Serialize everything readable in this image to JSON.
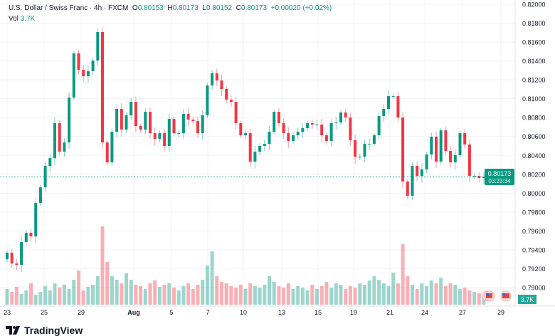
{
  "header": {
    "symbol": "U.S. Dollar / Swiss Franc · 4h · FXCM",
    "o_label": "O",
    "o": "0.80153",
    "h_label": "H",
    "h": "0.80173",
    "l_label": "L",
    "l": "0.80152",
    "c_label": "C",
    "c": "0.80173",
    "change": "+0.00020 (+0.02%)",
    "vol_label": "Vol",
    "vol": "3.7K"
  },
  "price_badge": {
    "price": "0.80173",
    "countdown": "03:23:34"
  },
  "volume_badge": "3.7K",
  "logo": "TradingView",
  "colors": {
    "up": "#089981",
    "down": "#f23645",
    "grid": "#f0f3fa"
  },
  "chart_data": {
    "type": "candlestick",
    "title": "U.S. Dollar / Swiss Franc · 4h · FXCM",
    "ylim": [
      0.79,
      0.82
    ],
    "yticks": [
      "0.82000",
      "0.81800",
      "0.81600",
      "0.81400",
      "0.81200",
      "0.81000",
      "0.80800",
      "0.80600",
      "0.80400",
      "0.80200",
      "0.80000",
      "0.79800",
      "0.79600",
      "0.79400",
      "0.79200",
      "0.79000"
    ],
    "xticks": [
      "23",
      "25",
      "29",
      "Aug",
      "5",
      "7",
      "10",
      "13",
      "15",
      "19",
      "21",
      "24",
      "27",
      "29"
    ],
    "first_open": 0.793,
    "close": [
      0.79369,
      0.79255,
      0.7924,
      0.79482,
      0.7958,
      0.79542,
      0.79896,
      0.80062,
      0.80288,
      0.80371,
      0.80741,
      0.80439,
      0.80537,
      0.81012,
      0.8148,
      0.81306,
      0.81238,
      0.81291,
      0.81404,
      0.81706,
      0.80537,
      0.80326,
      0.8065,
      0.80892,
      0.80673,
      0.80824,
      0.80967,
      0.80711,
      0.80673,
      0.80861,
      0.80635,
      0.80575,
      0.80635,
      0.805,
      0.80786,
      0.80635,
      0.80635,
      0.80839,
      0.80779,
      0.80763,
      0.80635,
      0.80824,
      0.8114,
      0.81269,
      0.81193,
      0.81103,
      0.8099,
      0.80967,
      0.80741,
      0.80613,
      0.80635,
      0.80334,
      0.80439,
      0.805,
      0.80522,
      0.8065,
      0.80861,
      0.80741,
      0.80635,
      0.80552,
      0.80613,
      0.8065,
      0.80688,
      0.80741,
      0.80726,
      0.80726,
      0.80613,
      0.80552,
      0.80741,
      0.80748,
      0.80854,
      0.80801,
      0.8056,
      0.80386,
      0.80386,
      0.80522,
      0.80522,
      0.80613,
      0.80816,
      0.80892,
      0.81027,
      0.81027,
      0.80801,
      0.80123,
      0.79972,
      0.80288,
      0.80183,
      0.80251,
      0.80409,
      0.80598,
      0.80334,
      0.80665,
      0.80447,
      0.80326,
      0.80402,
      0.80635,
      0.80515,
      0.80183,
      0.80183,
      0.8016,
      0.80173
    ],
    "volume": [
      22,
      18,
      25,
      15,
      20,
      30,
      14,
      18,
      26,
      20,
      30,
      24,
      28,
      22,
      35,
      48,
      20,
      25,
      28,
      40,
      110,
      60,
      40,
      35,
      30,
      44,
      35,
      28,
      26,
      22,
      30,
      34,
      25,
      28,
      30,
      24,
      20,
      26,
      30,
      22,
      28,
      35,
      55,
      75,
      40,
      32,
      30,
      26,
      24,
      28,
      22,
      30,
      26,
      24,
      28,
      40,
      32,
      26,
      24,
      30,
      22,
      26,
      24,
      20,
      28,
      22,
      26,
      32,
      24,
      30,
      28,
      22,
      26,
      24,
      30,
      28,
      34,
      40,
      35,
      30,
      26,
      45,
      30,
      85,
      40,
      28,
      22,
      30,
      26,
      34,
      30,
      38,
      26,
      30,
      28,
      22,
      24,
      20,
      18,
      16,
      14
    ]
  }
}
